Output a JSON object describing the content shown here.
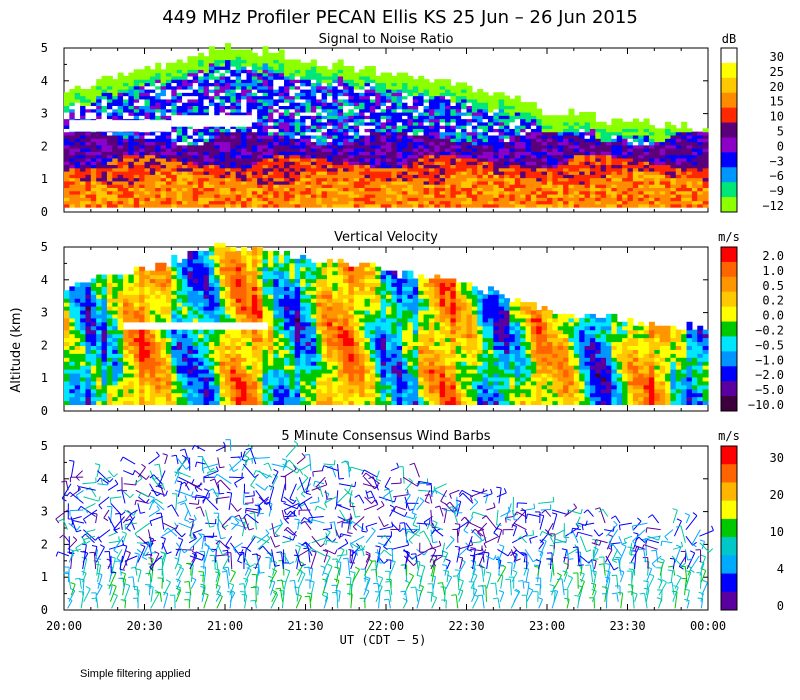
{
  "figure": {
    "title": "449 MHz Profiler PECAN Ellis KS 25 Jun – 26 Jun 2015",
    "ylabel": "Altitude (km)",
    "xlabel": "UT  (CDT – 5)",
    "footnote": "Simple filtering applied",
    "x_ticks": [
      "20:00",
      "20:30",
      "21:00",
      "21:30",
      "22:00",
      "22:30",
      "23:00",
      "23:30",
      "00:00"
    ],
    "y_ticks": [
      "0",
      "1",
      "2",
      "3",
      "4",
      "5"
    ]
  },
  "chart_data": [
    {
      "type": "heatmap",
      "title": "Signal to Noise Ratio",
      "unit": "dB",
      "xlim": [
        "20:00",
        "00:00"
      ],
      "ylim": [
        0,
        5
      ],
      "colorbar_labels": [
        "30",
        "25",
        "20",
        "15",
        "10",
        "5",
        "0",
        "−3",
        "−6",
        "−9",
        "−12"
      ],
      "colorbar_colors": [
        "#ffffff",
        "#ffff00",
        "#ffc800",
        "#ff8c00",
        "#ff2800",
        "#5a007a",
        "#8c00c8",
        "#0000ff",
        "#0096ff",
        "#00e678",
        "#8cff00"
      ],
      "top_of_signal_km": [
        [
          0,
          3.7
        ],
        [
          30,
          4.3
        ],
        [
          60,
          5.0
        ],
        [
          90,
          4.6
        ],
        [
          120,
          4.2
        ],
        [
          150,
          3.8
        ],
        [
          180,
          3.0
        ],
        [
          210,
          2.7
        ],
        [
          240,
          2.5
        ]
      ],
      "layers": [
        {
          "name_db": ">15",
          "top_km": 1.0
        },
        {
          "name_db": "10 to 15",
          "top_km": 1.5
        },
        {
          "name_db": "0 to 10",
          "top_km": 2.2
        }
      ]
    },
    {
      "type": "heatmap",
      "title": "Vertical Velocity",
      "unit": "m/s",
      "xlim": [
        "20:00",
        "00:00"
      ],
      "ylim": [
        0,
        5
      ],
      "colorbar_labels": [
        "2.0",
        "1.0",
        "0.5",
        "0.2",
        "0.0",
        "−0.2",
        "−0.5",
        "−1.0",
        "−2.0",
        "−5.0",
        "−10.0"
      ],
      "colorbar_colors": [
        "#ff0000",
        "#ff6400",
        "#ff9600",
        "#ffc800",
        "#ffff00",
        "#00c800",
        "#00e6ff",
        "#0096ff",
        "#0000ff",
        "#5a00a0",
        "#3c003c"
      ],
      "top_of_data_km": [
        [
          0,
          3.7
        ],
        [
          30,
          4.3
        ],
        [
          60,
          5.0
        ],
        [
          90,
          4.6
        ],
        [
          120,
          4.2
        ],
        [
          150,
          3.8
        ],
        [
          180,
          3.0
        ],
        [
          210,
          2.7
        ],
        [
          240,
          2.5
        ]
      ]
    },
    {
      "type": "scatter",
      "title": "5 Minute Consensus Wind Barbs",
      "unit": "m/s",
      "xlim": [
        "20:00",
        "00:00"
      ],
      "ylim": [
        0,
        5
      ],
      "colorbar_labels": [
        "30",
        "20",
        "10",
        "4",
        "0"
      ],
      "colorbar_colors": [
        "#ff0000",
        "#ff6400",
        "#ffb400",
        "#ffff00",
        "#00c800",
        "#00c8c8",
        "#00aaff",
        "#0000ff",
        "#5a00a0"
      ],
      "top_of_data_km": [
        [
          0,
          4.2
        ],
        [
          30,
          4.5
        ],
        [
          60,
          5.0
        ],
        [
          90,
          4.6
        ],
        [
          120,
          4.3
        ],
        [
          150,
          3.8
        ],
        [
          180,
          3.2
        ],
        [
          210,
          2.8
        ],
        [
          240,
          2.6
        ]
      ]
    }
  ]
}
